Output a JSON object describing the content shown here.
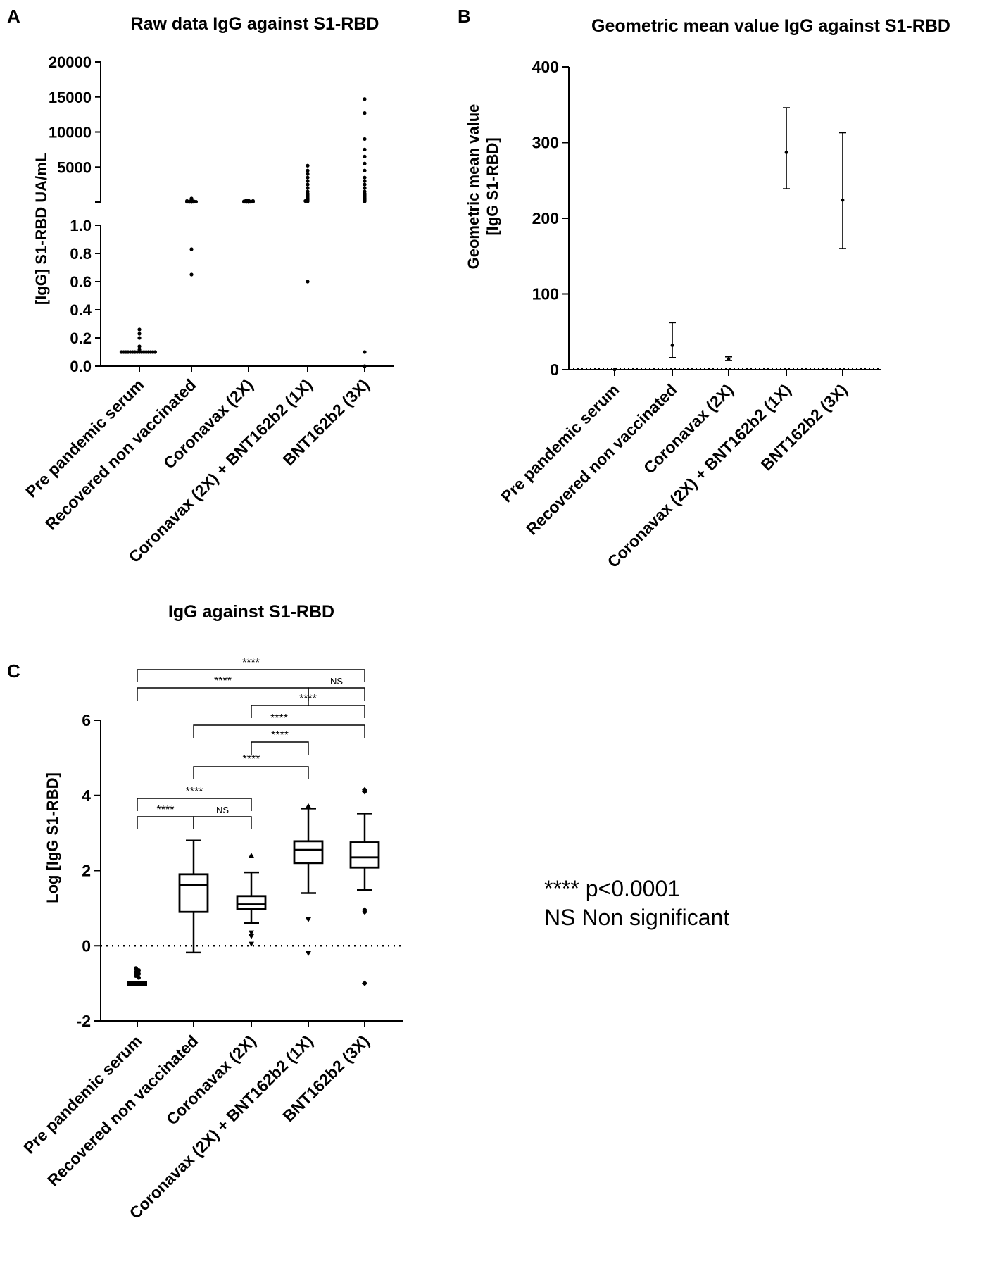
{
  "chart_data": [
    {
      "panel": "A",
      "type": "scatter",
      "title": "Raw data IgG against S1-RBD",
      "ylabel": "[IgG] S1-RBD UA/mL",
      "categories": [
        "Pre pandemic serum",
        "Recovered non vaccinated",
        "Coronavax (2X)",
        "Coronavax (2X) + BNT162b2 (1X)",
        "BNT162b2 (3X)"
      ],
      "y_segments": [
        {
          "range": [
            0,
            1.0
          ],
          "ticks": [
            "0.0",
            "0.2",
            "0.4",
            "0.6",
            "0.8",
            "1.0"
          ]
        },
        {
          "range": [
            0,
            20000
          ],
          "ticks": [
            "5000",
            "10000",
            "15000",
            "20000"
          ]
        }
      ],
      "series": [
        {
          "category": "Pre pandemic serum",
          "values": [
            0.1,
            0.1,
            0.1,
            0.1,
            0.1,
            0.1,
            0.1,
            0.1,
            0.1,
            0.1,
            0.1,
            0.1,
            0.1,
            0.1,
            0.1,
            0.1,
            0.12,
            0.14,
            0.2,
            0.23,
            0.26
          ]
        },
        {
          "category": "Recovered non vaccinated",
          "values": [
            0.65,
            0.83,
            10,
            20,
            30,
            40,
            50,
            60,
            80,
            100,
            150,
            200,
            300,
            400,
            500
          ]
        },
        {
          "category": "Coronavax (2X)",
          "values": [
            10,
            20,
            30,
            40,
            50,
            60,
            70,
            80,
            100,
            150,
            200,
            250
          ]
        },
        {
          "category": "Coronavax (2X) + BNT162b2 (1X)",
          "values": [
            0.6,
            100,
            150,
            200,
            300,
            400,
            500,
            600,
            800,
            1000,
            1200,
            1500,
            2000,
            2500,
            3000,
            3500,
            4000,
            4500,
            5200
          ]
        },
        {
          "category": "BNT162b2 (3X)",
          "values": [
            0.0,
            0.1,
            100,
            200,
            300,
            400,
            500,
            600,
            800,
            1000,
            1200,
            1500,
            2000,
            2500,
            3000,
            3500,
            4500,
            5500,
            6500,
            7500,
            9000,
            12700,
            14700
          ]
        }
      ]
    },
    {
      "panel": "B",
      "type": "scatter",
      "title": "Geometric mean value IgG against S1-RBD",
      "ylabel": "Geometric mean value [IgG S1-RBD]",
      "ylim": [
        0,
        400
      ],
      "yticks": [
        "0",
        "100",
        "200",
        "300",
        "400"
      ],
      "categories": [
        "Pre pandemic serum",
        "Recovered non vaccinated",
        "Coronavax (2X)",
        "Coronavax (2X) + BNT162b2 (1X)",
        "BNT162b2 (3X)"
      ],
      "means": [
        0.1,
        32,
        14,
        287,
        224
      ],
      "ci_low": [
        0.1,
        16,
        12,
        239,
        160
      ],
      "ci_high": [
        0.1,
        62,
        17,
        346,
        313
      ]
    },
    {
      "panel": "C",
      "type": "box",
      "title": "IgG against S1-RBD",
      "ylabel": "Log [IgG S1-RBD]",
      "ylim": [
        -2,
        6
      ],
      "yticks": [
        "-2",
        "0",
        "2",
        "4",
        "6"
      ],
      "categories": [
        "Pre pandemic serum",
        "Recovered non vaccinated",
        "Coronavax (2X)",
        "Coronavax (2X) + BNT162b2 (1X)",
        "BNT162b2 (3X)"
      ],
      "boxes": [
        {
          "whisker_low": -1.0,
          "q1": -1.0,
          "median": -1.0,
          "q3": -1.0,
          "whisker_high": -1.0,
          "outliers": [
            -0.6,
            -0.65,
            -0.7,
            -0.75,
            -0.8,
            -0.85
          ]
        },
        {
          "whisker_low": -0.18,
          "q1": 0.9,
          "median": 1.62,
          "q3": 1.9,
          "whisker_high": 2.8,
          "outliers": []
        },
        {
          "whisker_low": 0.6,
          "q1": 0.98,
          "median": 1.1,
          "q3": 1.32,
          "whisker_high": 1.95,
          "outliers": [
            0.05,
            0.25,
            0.35,
            2.4
          ]
        },
        {
          "whisker_low": 1.4,
          "q1": 2.2,
          "median": 2.55,
          "q3": 2.78,
          "whisker_high": 3.65,
          "outliers": [
            -0.2,
            0.7,
            3.72
          ]
        },
        {
          "whisker_low": 1.48,
          "q1": 2.08,
          "median": 2.35,
          "q3": 2.75,
          "whisker_high": 3.52,
          "outliers": [
            -1.0,
            0.9,
            0.95,
            4.1,
            4.15
          ]
        }
      ],
      "reference_line": 0,
      "brackets": [
        {
          "from": 0,
          "to": 4,
          "label": "****"
        },
        {
          "from": 0,
          "to": 3,
          "label": "****"
        },
        {
          "from": 3,
          "to": 4,
          "label": "NS"
        },
        {
          "from": 2,
          "to": 4,
          "label": "****"
        },
        {
          "from": 1,
          "to": 4,
          "label": "****"
        },
        {
          "from": 2,
          "to": 3,
          "label": "****"
        },
        {
          "from": 1,
          "to": 3,
          "label": "****"
        },
        {
          "from": 0,
          "to": 2,
          "label": "****"
        },
        {
          "from": 0,
          "to": 1,
          "label": "****"
        },
        {
          "from": 1,
          "to": 2,
          "label": "NS"
        }
      ]
    }
  ],
  "panels": {
    "a": "A",
    "b": "B",
    "c": "C"
  },
  "legend": {
    "line1": "**** p<0.0001",
    "line2": "NS Non significant"
  }
}
